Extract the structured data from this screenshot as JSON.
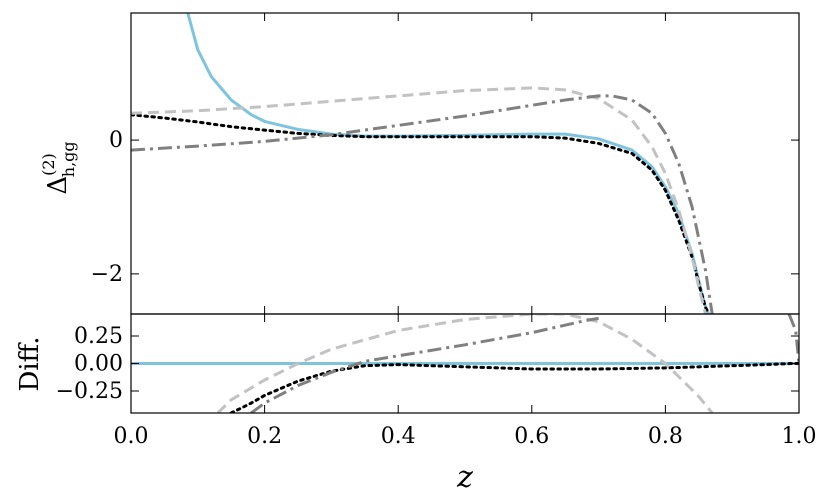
{
  "chart_data": [
    {
      "type": "line",
      "panel": "top",
      "title": "",
      "xlabel": "",
      "ylabel": "Δ(2)h,gg",
      "xlim": [
        0.0,
        1.0
      ],
      "ylim": [
        -2.6,
        1.9
      ],
      "yticks": [
        0,
        -2
      ],
      "ytick_labels": [
        "0",
        "−2"
      ],
      "xticks": [
        0.0,
        0.2,
        0.4,
        0.6,
        0.8,
        1.0
      ],
      "grid": false,
      "series": [
        {
          "style": "solid",
          "color": "#7ec4df",
          "x": [
            0.085,
            0.1,
            0.12,
            0.15,
            0.18,
            0.2,
            0.25,
            0.3,
            0.35,
            0.4,
            0.5,
            0.6,
            0.65,
            0.7,
            0.75,
            0.78,
            0.8,
            0.82,
            0.84,
            0.85,
            0.86,
            0.865
          ],
          "y": [
            1.9,
            1.35,
            0.95,
            0.6,
            0.38,
            0.28,
            0.16,
            0.09,
            0.06,
            0.06,
            0.07,
            0.09,
            0.09,
            0.02,
            -0.15,
            -0.4,
            -0.7,
            -1.1,
            -1.7,
            -2.1,
            -2.5,
            -2.6
          ]
        },
        {
          "style": "dotted",
          "color": "#000000",
          "x": [
            0.0,
            0.05,
            0.1,
            0.15,
            0.2,
            0.25,
            0.3,
            0.35,
            0.4,
            0.5,
            0.6,
            0.65,
            0.7,
            0.75,
            0.78,
            0.8,
            0.82,
            0.84,
            0.85,
            0.86,
            0.865
          ],
          "y": [
            0.38,
            0.33,
            0.27,
            0.2,
            0.15,
            0.1,
            0.07,
            0.05,
            0.05,
            0.05,
            0.05,
            0.03,
            -0.05,
            -0.2,
            -0.45,
            -0.75,
            -1.2,
            -1.75,
            -2.15,
            -2.5,
            -2.6
          ]
        },
        {
          "style": "dashed",
          "color": "#c2c2c2",
          "x": [
            0.0,
            0.1,
            0.2,
            0.3,
            0.4,
            0.5,
            0.6,
            0.65,
            0.7,
            0.75,
            0.78,
            0.8,
            0.82,
            0.84,
            0.85,
            0.86
          ],
          "y": [
            0.4,
            0.44,
            0.5,
            0.58,
            0.66,
            0.74,
            0.78,
            0.75,
            0.62,
            0.3,
            -0.1,
            -0.5,
            -1.05,
            -1.75,
            -2.2,
            -2.6
          ]
        },
        {
          "style": "dashdot",
          "color": "#808080",
          "x": [
            0.0,
            0.1,
            0.2,
            0.3,
            0.4,
            0.5,
            0.6,
            0.65,
            0.7,
            0.72,
            0.75,
            0.78,
            0.8,
            0.82,
            0.84,
            0.86,
            0.87
          ],
          "y": [
            -0.15,
            -0.09,
            -0.02,
            0.08,
            0.22,
            0.36,
            0.52,
            0.6,
            0.66,
            0.66,
            0.6,
            0.4,
            0.1,
            -0.35,
            -1.0,
            -1.95,
            -2.6
          ]
        }
      ]
    },
    {
      "type": "line",
      "panel": "bottom",
      "title": "",
      "xlabel": "z",
      "ylabel": "Diff.",
      "xlim": [
        0.0,
        1.0
      ],
      "ylim": [
        -0.45,
        0.45
      ],
      "yticks": [
        0.25,
        0.0,
        -0.25
      ],
      "ytick_labels": [
        "0.25",
        "0.00",
        "−0.25"
      ],
      "xticks": [
        0.0,
        0.2,
        0.4,
        0.6,
        0.8,
        1.0
      ],
      "xtick_labels": [
        "0.0",
        "0.2",
        "0.4",
        "0.6",
        "0.8",
        "1.0"
      ],
      "grid": false,
      "series": [
        {
          "style": "solid",
          "color": "#7ec4df",
          "x": [
            0.0,
            1.0
          ],
          "y": [
            0.0,
            0.0
          ]
        },
        {
          "style": "dotted",
          "color": "#000000",
          "x": [
            0.15,
            0.18,
            0.2,
            0.25,
            0.3,
            0.35,
            0.4,
            0.5,
            0.6,
            0.7,
            0.8,
            0.9,
            0.95,
            0.99,
            1.0
          ],
          "y": [
            -0.45,
            -0.36,
            -0.29,
            -0.16,
            -0.07,
            -0.02,
            -0.01,
            -0.03,
            -0.05,
            -0.05,
            -0.04,
            -0.02,
            -0.01,
            0.0,
            0.0
          ]
        },
        {
          "style": "dashed",
          "color": "#c2c2c2",
          "x": [
            0.13,
            0.15,
            0.2,
            0.25,
            0.3,
            0.4,
            0.5,
            0.6,
            0.65,
            0.7,
            0.75,
            0.8,
            0.85,
            0.87
          ],
          "y": [
            -0.45,
            -0.33,
            -0.15,
            0.0,
            0.13,
            0.3,
            0.4,
            0.45,
            0.45,
            0.38,
            0.22,
            0.0,
            -0.3,
            -0.45
          ]
        },
        {
          "style": "dashdot",
          "color": "#808080",
          "x": [
            0.18,
            0.2,
            0.25,
            0.3,
            0.35,
            0.4,
            0.5,
            0.6,
            0.68,
            0.7
          ],
          "y": [
            -0.45,
            -0.36,
            -0.2,
            -0.08,
            0.02,
            0.07,
            0.17,
            0.28,
            0.39,
            0.41
          ]
        },
        {
          "style": "dashdot",
          "color": "#808080",
          "x": [
            0.985,
            0.995,
            1.0
          ],
          "y": [
            0.45,
            0.3,
            0.0
          ]
        }
      ]
    }
  ]
}
